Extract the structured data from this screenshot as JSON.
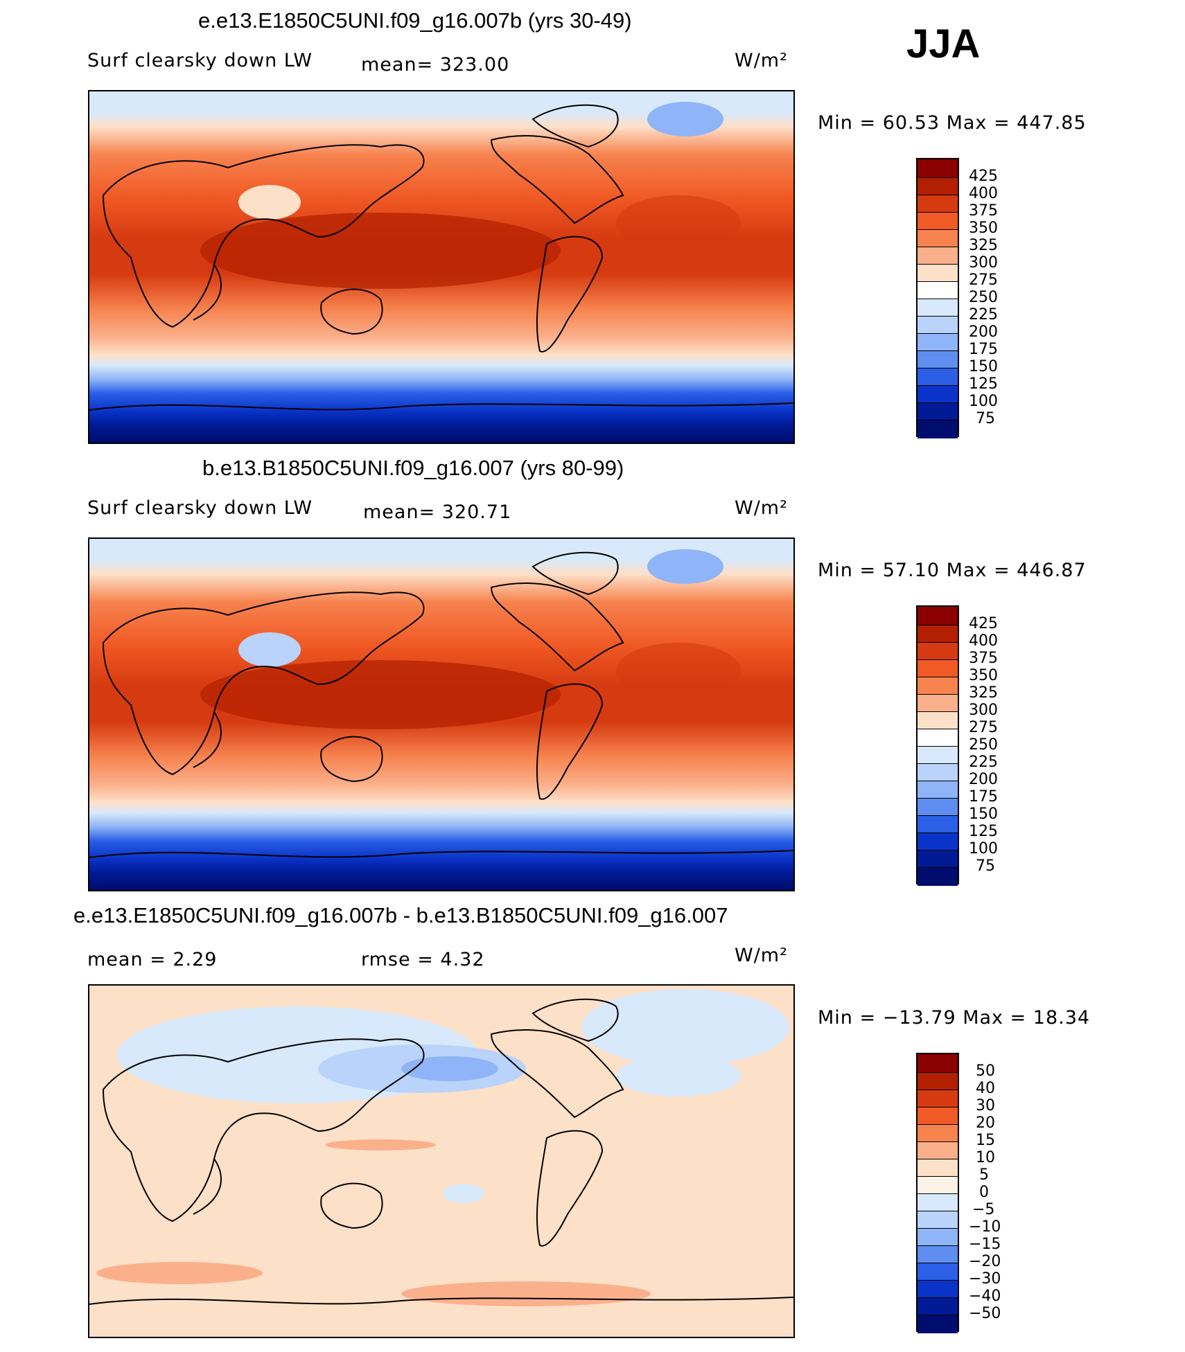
{
  "season": "JJA",
  "panels": [
    {
      "title": "e.e13.E1850C5UNI.f09_g16.007b (yrs 30-49)",
      "left_label": "Surf clearsky down LW",
      "center_label": "mean= 323.00",
      "units": "W/m²",
      "min_max": "Min =   60.53 Max =  447.85",
      "colorbar_levels": [
        "425",
        "400",
        "375",
        "350",
        "325",
        "300",
        "275",
        "250",
        "225",
        "200",
        "175",
        "150",
        "125",
        "100",
        "75"
      ]
    },
    {
      "title": "b.e13.B1850C5UNI.f09_g16.007 (yrs 80-99)",
      "left_label": "Surf clearsky down LW",
      "center_label": "mean= 320.71",
      "units": "W/m²",
      "min_max": "Min =   57.10 Max =  446.87",
      "colorbar_levels": [
        "425",
        "400",
        "375",
        "350",
        "325",
        "300",
        "275",
        "250",
        "225",
        "200",
        "175",
        "150",
        "125",
        "100",
        "75"
      ]
    },
    {
      "title": "e.e13.E1850C5UNI.f09_g16.007b - b.e13.B1850C5UNI.f09_g16.007",
      "left_label": "mean =    2.29",
      "center_label": "rmse =    4.32",
      "units": "W/m²",
      "min_max": "Min = −13.79 Max =   18.34",
      "colorbar_levels": [
        "50",
        "40",
        "30",
        "20",
        "15",
        "10",
        "5",
        "0",
        "−5",
        "−10",
        "−15",
        "−20",
        "−30",
        "−40",
        "−50"
      ]
    }
  ],
  "colors": {
    "palette_top_to_bottom": [
      "#8b0000",
      "#b22000",
      "#d63a10",
      "#f05a25",
      "#f7834f",
      "#fbb08c",
      "#fde0c8",
      "#ffffff",
      "#d7e9fb",
      "#b9d3fa",
      "#8fb4f7",
      "#5d8ef0",
      "#2a5fe6",
      "#0a33c9",
      "#001a96",
      "#000c6e"
    ]
  }
}
